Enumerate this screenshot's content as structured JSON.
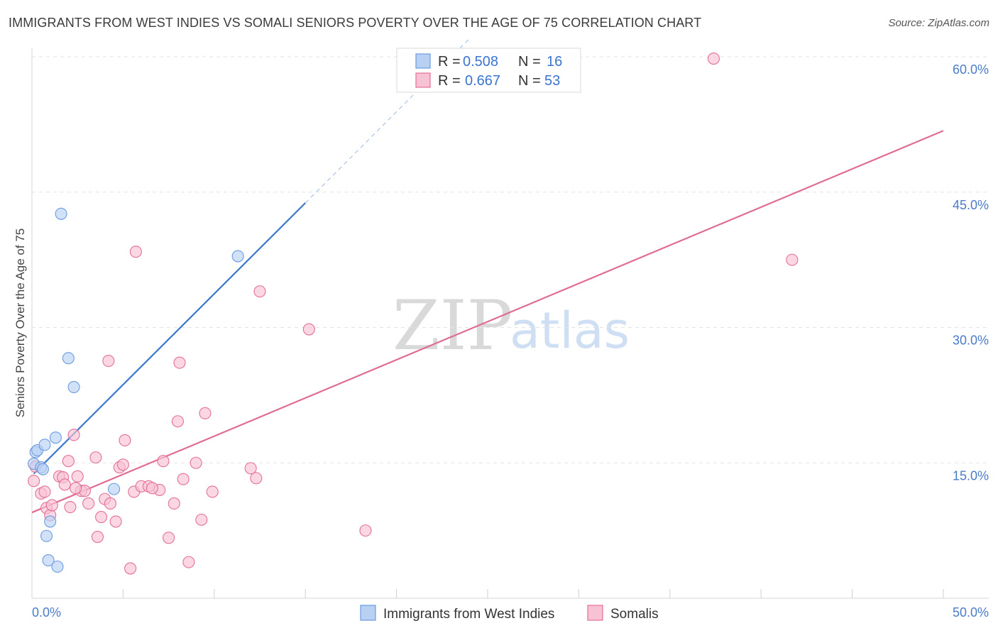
{
  "title": "IMMIGRANTS FROM WEST INDIES VS SOMALI SENIORS POVERTY OVER THE AGE OF 75 CORRELATION CHART",
  "source": "Source: ZipAtlas.com",
  "watermark": {
    "zip": "ZIP",
    "atlas": "atlas"
  },
  "colors": {
    "blue": "#6c9be0",
    "blue_fill": "#b8d1f3",
    "blue_line": "#3a77cf",
    "pink": "#e46f98",
    "pink_fill": "#f7c2d3",
    "pink_line": "#e06c95",
    "axis_text": "#4a7cc9"
  },
  "legend": {
    "rows": [
      {
        "series": "Immigrants from West Indies",
        "r_label": "R =",
        "r_value": "0.508",
        "n_label": "N =",
        "n_value": "16"
      },
      {
        "series": "Somalis",
        "r_label": "R =",
        "r_value": "0.667",
        "n_label": "N =",
        "n_value": "53"
      }
    ]
  },
  "chart_data": {
    "type": "scatter",
    "title": "IMMIGRANTS FROM WEST INDIES VS SOMALI SENIORS POVERTY OVER THE AGE OF 75 CORRELATION CHART",
    "xlabel": "",
    "ylabel": "Seniors Poverty Over the Age of 75",
    "xlim": [
      0,
      50
    ],
    "ylim": [
      0,
      62
    ],
    "x_tick_labels": [
      "0.0%",
      "50.0%"
    ],
    "y_ticks": [
      15,
      30,
      45,
      60
    ],
    "y_tick_labels": [
      "15.0%",
      "30.0%",
      "45.0%",
      "60.0%"
    ],
    "grid": true,
    "legend_position": "bottom",
    "series": [
      {
        "name": "Immigrants from West Indies",
        "color": "#6c9be0",
        "points": [
          {
            "x": 0.1,
            "y": 14.9
          },
          {
            "x": 0.2,
            "y": 16.2
          },
          {
            "x": 0.3,
            "y": 16.4
          },
          {
            "x": 0.5,
            "y": 14.5
          },
          {
            "x": 0.6,
            "y": 14.3
          },
          {
            "x": 0.7,
            "y": 17.0
          },
          {
            "x": 0.8,
            "y": 6.9
          },
          {
            "x": 0.9,
            "y": 4.2
          },
          {
            "x": 1.0,
            "y": 8.5
          },
          {
            "x": 1.3,
            "y": 17.8
          },
          {
            "x": 1.4,
            "y": 3.5
          },
          {
            "x": 1.6,
            "y": 42.6
          },
          {
            "x": 2.0,
            "y": 26.6
          },
          {
            "x": 2.3,
            "y": 23.4
          },
          {
            "x": 4.5,
            "y": 12.1
          },
          {
            "x": 11.3,
            "y": 37.9
          }
        ],
        "trend": {
          "x0": 0.1,
          "y0": 13.8,
          "x1": 15.0,
          "y1": 43.8,
          "dash_x1": 24.0,
          "dash_y1": 62.0
        }
      },
      {
        "name": "Somalis",
        "color": "#e46f98",
        "points": [
          {
            "x": 0.1,
            "y": 13.0
          },
          {
            "x": 0.2,
            "y": 14.6
          },
          {
            "x": 0.5,
            "y": 11.6
          },
          {
            "x": 0.7,
            "y": 11.8
          },
          {
            "x": 0.8,
            "y": 10.0
          },
          {
            "x": 1.0,
            "y": 9.2
          },
          {
            "x": 1.1,
            "y": 10.3
          },
          {
            "x": 1.5,
            "y": 13.5
          },
          {
            "x": 1.7,
            "y": 13.4
          },
          {
            "x": 1.8,
            "y": 12.6
          },
          {
            "x": 2.0,
            "y": 15.2
          },
          {
            "x": 2.1,
            "y": 10.1
          },
          {
            "x": 2.3,
            "y": 18.1
          },
          {
            "x": 2.5,
            "y": 13.5
          },
          {
            "x": 2.7,
            "y": 11.9
          },
          {
            "x": 2.9,
            "y": 11.9
          },
          {
            "x": 3.1,
            "y": 10.5
          },
          {
            "x": 3.5,
            "y": 15.6
          },
          {
            "x": 3.6,
            "y": 6.8
          },
          {
            "x": 3.8,
            "y": 9.0
          },
          {
            "x": 4.0,
            "y": 11.0
          },
          {
            "x": 4.2,
            "y": 26.3
          },
          {
            "x": 4.3,
            "y": 10.5
          },
          {
            "x": 4.6,
            "y": 8.5
          },
          {
            "x": 4.8,
            "y": 14.5
          },
          {
            "x": 5.0,
            "y": 14.8
          },
          {
            "x": 5.1,
            "y": 17.5
          },
          {
            "x": 5.4,
            "y": 3.3
          },
          {
            "x": 5.6,
            "y": 11.8
          },
          {
            "x": 5.7,
            "y": 38.4
          },
          {
            "x": 6.0,
            "y": 12.4
          },
          {
            "x": 6.4,
            "y": 12.4
          },
          {
            "x": 7.0,
            "y": 12.0
          },
          {
            "x": 7.2,
            "y": 15.2
          },
          {
            "x": 7.5,
            "y": 6.7
          },
          {
            "x": 7.8,
            "y": 10.5
          },
          {
            "x": 8.0,
            "y": 19.6
          },
          {
            "x": 8.1,
            "y": 26.1
          },
          {
            "x": 8.3,
            "y": 13.2
          },
          {
            "x": 8.6,
            "y": 4.0
          },
          {
            "x": 9.0,
            "y": 15.0
          },
          {
            "x": 9.3,
            "y": 8.7
          },
          {
            "x": 9.5,
            "y": 20.5
          },
          {
            "x": 9.9,
            "y": 11.8
          },
          {
            "x": 12.0,
            "y": 14.4
          },
          {
            "x": 12.3,
            "y": 13.3
          },
          {
            "x": 12.5,
            "y": 34.0
          },
          {
            "x": 15.2,
            "y": 29.8
          },
          {
            "x": 18.3,
            "y": 7.5
          },
          {
            "x": 37.4,
            "y": 59.8
          },
          {
            "x": 41.7,
            "y": 37.5
          },
          {
            "x": 2.4,
            "y": 12.2
          },
          {
            "x": 6.6,
            "y": 12.2
          }
        ],
        "trend": {
          "x0": 0.0,
          "y0": 9.5,
          "x1": 50.0,
          "y1": 51.8
        }
      }
    ]
  }
}
